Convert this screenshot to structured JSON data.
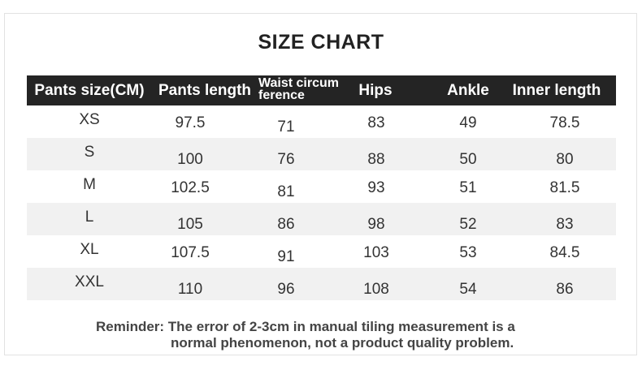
{
  "title": "SIZE CHART",
  "headers": [
    "Pants size(CM)",
    "Pants length",
    "Waist circum ference",
    "Hips",
    "Ankle",
    "Inner length"
  ],
  "rows": [
    [
      "XS",
      "97.5",
      "71",
      "83",
      "49",
      "78.5"
    ],
    [
      "S",
      "100",
      "76",
      "88",
      "50",
      "80"
    ],
    [
      "M",
      "102.5",
      "81",
      "93",
      "51",
      "81.5"
    ],
    [
      "L",
      "105",
      "86",
      "98",
      "52",
      "83"
    ],
    [
      "XL",
      "107.5",
      "91",
      "103",
      "53",
      "84.5"
    ],
    [
      "XXL",
      "110",
      "96",
      "108",
      "54",
      "86"
    ]
  ],
  "reminder": {
    "line1": "Reminder: The error of 2-3cm in manual tiling measurement is a",
    "line2": "normal phenomenon, not a product quality problem."
  },
  "colors": {
    "header_bg": "#242424",
    "alt_row_bg": "#f1f1f1"
  }
}
